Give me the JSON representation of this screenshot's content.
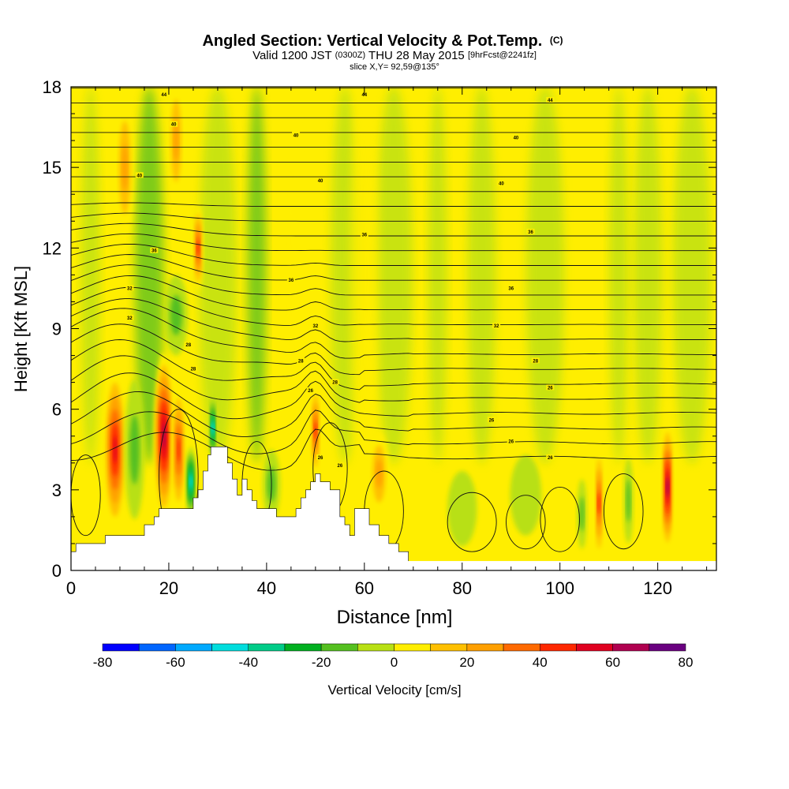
{
  "chart_data": {
    "type": "heatmap",
    "title": {
      "main": "Angled Section: Vertical Velocity & Pot.Temp.",
      "main_units": "(C)",
      "valid_prefix": "Valid 1200 JST",
      "valid_utc": "(0300Z)",
      "valid_date": "THU 28 May 2015",
      "forecast": "[9hrFcst@2241fz]",
      "slice": "slice X,Y= 92,59@135°"
    },
    "xlabel": "Distance [nm]",
    "ylabel": "Height [Kft MSL]",
    "xlim": [
      0,
      132
    ],
    "ylim": [
      0,
      18
    ],
    "x_ticks": [
      "0",
      "20",
      "40",
      "60",
      "80",
      "100",
      "120"
    ],
    "y_ticks": [
      "0",
      "3",
      "6",
      "9",
      "12",
      "15",
      "18"
    ],
    "colorbar": {
      "label": "Vertical Velocity [cm/s]",
      "tick_labels": [
        "-80",
        "-60",
        "-40",
        "-20",
        "0",
        "20",
        "40",
        "60",
        "80"
      ],
      "bounds": [
        -80,
        -70,
        -60,
        -50,
        -40,
        -30,
        -20,
        -10,
        0,
        10,
        20,
        30,
        40,
        50,
        60,
        70,
        80
      ],
      "colors": [
        "#0000ff",
        "#0066ff",
        "#00aaff",
        "#00dddd",
        "#00cc88",
        "#00b020",
        "#55c020",
        "#b8e014",
        "#ffee00",
        "#ffc000",
        "#ffa000",
        "#ff6a00",
        "#ff2800",
        "#e00020",
        "#b00050",
        "#6a0080"
      ]
    },
    "terrain_kft": [
      [
        0,
        0.7
      ],
      [
        1,
        1.0
      ],
      [
        6,
        1.0
      ],
      [
        7,
        1.3
      ],
      [
        13,
        1.3
      ],
      [
        15,
        1.7
      ],
      [
        17,
        2.0
      ],
      [
        18,
        2.3
      ],
      [
        23,
        2.3
      ],
      [
        25,
        2.7
      ],
      [
        26,
        3.0
      ],
      [
        27,
        3.7
      ],
      [
        28,
        4.3
      ],
      [
        28.6,
        4.6
      ],
      [
        31.4,
        4.6
      ],
      [
        32,
        4.0
      ],
      [
        33,
        3.4
      ],
      [
        34,
        2.8
      ],
      [
        35,
        3.4
      ],
      [
        36,
        3.0
      ],
      [
        37,
        2.6
      ],
      [
        38,
        2.3
      ],
      [
        40,
        2.3
      ],
      [
        42,
        2.0
      ],
      [
        45,
        2.0
      ],
      [
        46,
        2.3
      ],
      [
        47,
        2.7
      ],
      [
        48,
        3.0
      ],
      [
        49,
        3.3
      ],
      [
        50,
        3.6
      ],
      [
        51,
        3.3
      ],
      [
        53,
        3.0
      ],
      [
        55,
        2.0
      ],
      [
        56,
        1.7
      ],
      [
        57,
        1.3
      ],
      [
        58,
        2.3
      ],
      [
        60,
        2.3
      ],
      [
        61,
        1.7
      ],
      [
        63,
        1.3
      ],
      [
        65,
        1.0
      ],
      [
        67,
        0.7
      ],
      [
        69,
        0.3
      ],
      [
        71,
        0.3
      ],
      [
        72,
        0.0
      ]
    ],
    "vertical_velocity_cells": [
      {
        "x": 9,
        "y": 4.5,
        "rx": 2.2,
        "ry": 3.0,
        "v": 55
      },
      {
        "x": 13,
        "y": 4.5,
        "rx": 2.0,
        "ry": 2.6,
        "v": -22
      },
      {
        "x": 19,
        "y": 5.0,
        "rx": 2.0,
        "ry": 3.1,
        "v": 72
      },
      {
        "x": 22,
        "y": 4.5,
        "rx": 1.4,
        "ry": 2.4,
        "v": 52
      },
      {
        "x": 24.5,
        "y": 3.3,
        "rx": 1.0,
        "ry": 1.3,
        "v": -48
      },
      {
        "x": 29,
        "y": 5.3,
        "rx": 0.7,
        "ry": 1.2,
        "v": -45
      },
      {
        "x": 26,
        "y": 12,
        "rx": 1.0,
        "ry": 1.6,
        "v": 52
      },
      {
        "x": 21.5,
        "y": 9.5,
        "rx": 2.4,
        "ry": 1.5,
        "v": -22
      },
      {
        "x": 11,
        "y": 15,
        "rx": 1.8,
        "ry": 2.6,
        "v": 28
      },
      {
        "x": 21.5,
        "y": 16,
        "rx": 1.6,
        "ry": 2.3,
        "v": 28
      },
      {
        "x": 50,
        "y": 5.2,
        "rx": 1.0,
        "ry": 1.7,
        "v": 45
      },
      {
        "x": 41,
        "y": 3.2,
        "rx": 1.8,
        "ry": 1.3,
        "v": -22
      },
      {
        "x": 63,
        "y": 3.6,
        "rx": 2.0,
        "ry": 1.6,
        "v": 28
      },
      {
        "x": 108,
        "y": 2.5,
        "rx": 0.9,
        "ry": 2.1,
        "v": 52
      },
      {
        "x": 114,
        "y": 2.6,
        "rx": 1.0,
        "ry": 1.6,
        "v": -22
      },
      {
        "x": 122,
        "y": 3.1,
        "rx": 1.2,
        "ry": 2.4,
        "v": 68
      },
      {
        "x": 104.5,
        "y": 2.1,
        "rx": 1.0,
        "ry": 1.3,
        "v": -22
      },
      {
        "x": 93,
        "y": 2.8,
        "rx": 3.2,
        "ry": 1.5,
        "v": -12
      },
      {
        "x": 80,
        "y": 2.3,
        "rx": 3.0,
        "ry": 1.4,
        "v": -12
      }
    ],
    "theta_contour_labels": [
      {
        "x": 19,
        "y": 17.7,
        "text": "44"
      },
      {
        "x": 60,
        "y": 17.7,
        "text": "44"
      },
      {
        "x": 98,
        "y": 17.5,
        "text": "44"
      },
      {
        "x": 21,
        "y": 16.6,
        "text": "40"
      },
      {
        "x": 46,
        "y": 16.2,
        "text": "40"
      },
      {
        "x": 91,
        "y": 16.1,
        "text": "40"
      },
      {
        "x": 14,
        "y": 14.7,
        "text": "40"
      },
      {
        "x": 51,
        "y": 14.5,
        "text": "40"
      },
      {
        "x": 88,
        "y": 14.4,
        "text": "40"
      },
      {
        "x": 17,
        "y": 11.9,
        "text": "36"
      },
      {
        "x": 60,
        "y": 12.5,
        "text": "36"
      },
      {
        "x": 94,
        "y": 12.6,
        "text": "36"
      },
      {
        "x": 12,
        "y": 10.5,
        "text": "32"
      },
      {
        "x": 45,
        "y": 10.8,
        "text": "36"
      },
      {
        "x": 90,
        "y": 10.5,
        "text": "36"
      },
      {
        "x": 12,
        "y": 9.4,
        "text": "32"
      },
      {
        "x": 50,
        "y": 9.1,
        "text": "32"
      },
      {
        "x": 87,
        "y": 9.1,
        "text": "32"
      },
      {
        "x": 24,
        "y": 8.4,
        "text": "28"
      },
      {
        "x": 47,
        "y": 7.8,
        "text": "28"
      },
      {
        "x": 95,
        "y": 7.8,
        "text": "28"
      },
      {
        "x": 25,
        "y": 7.5,
        "text": "28"
      },
      {
        "x": 54,
        "y": 7.0,
        "text": "28"
      },
      {
        "x": 98,
        "y": 6.8,
        "text": "26"
      },
      {
        "x": 49,
        "y": 6.7,
        "text": "26"
      },
      {
        "x": 86,
        "y": 5.6,
        "text": "26"
      },
      {
        "x": 90,
        "y": 4.8,
        "text": "26"
      },
      {
        "x": 51,
        "y": 4.2,
        "text": "26"
      },
      {
        "x": 55,
        "y": 3.9,
        "text": "26"
      },
      {
        "x": 98,
        "y": 4.2,
        "text": "26"
      }
    ]
  }
}
